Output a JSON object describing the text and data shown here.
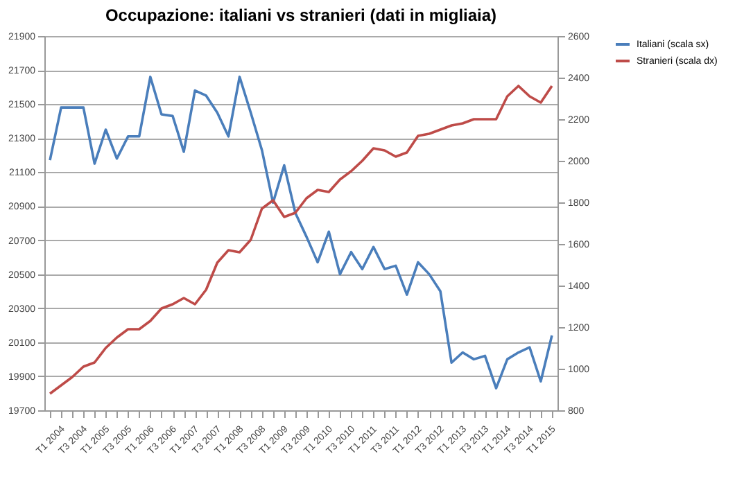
{
  "chart_data": {
    "type": "line",
    "title": "Occupazione: italiani vs stranieri (dati in migliaia)",
    "categories": [
      "T1 2004",
      null,
      "T3 2004",
      null,
      "T1 2005",
      null,
      "T3 2005",
      null,
      "T1 2006",
      null,
      "T3 2006",
      null,
      "T1 2007",
      null,
      "T3 2007",
      null,
      "T1 2008",
      null,
      "T3 2008",
      null,
      "T1 2009",
      null,
      "T3 2009",
      null,
      "T1 2010",
      null,
      "T3 2010",
      null,
      "T1 2011",
      null,
      "T3 2011",
      null,
      "T1 2012",
      null,
      "T3 2012",
      null,
      "T1 2013",
      null,
      "T3 2013",
      null,
      "T1 2014",
      null,
      "T3 2014",
      null,
      "T1 2015",
      null
    ],
    "series": [
      {
        "name": "Italiani (scala sx)",
        "color": "#4a7ebb",
        "values": [
          21170,
          21480,
          21480,
          21480,
          21150,
          21350,
          21180,
          21310,
          21310,
          21660,
          21440,
          21430,
          21220,
          21580,
          21550,
          21450,
          21310,
          21660,
          21450,
          21230,
          20920,
          21140,
          20860,
          20720,
          20570,
          20750,
          20500,
          20630,
          20530,
          20660,
          20530,
          20550,
          20380,
          20570,
          20500,
          20400,
          19980,
          20040,
          20000,
          20020,
          19830,
          20000,
          20040,
          20070,
          19870,
          20140
        ]
      },
      {
        "name": "Stranieri (scala dx)",
        "color": "#be4b48",
        "axis": "y2",
        "values": [
          880,
          920,
          960,
          1010,
          1030,
          1100,
          1150,
          1190,
          1190,
          1230,
          1290,
          1310,
          1340,
          1310,
          1380,
          1510,
          1570,
          1560,
          1620,
          1770,
          1810,
          1730,
          1750,
          1820,
          1860,
          1850,
          1910,
          1950,
          2000,
          2060,
          2050,
          2020,
          2040,
          2120,
          2130,
          2150,
          2170,
          2180,
          2200,
          2200,
          2200,
          2310,
          2360,
          2310,
          2280,
          2360
        ]
      }
    ],
    "ylim": [
      19700,
      21900
    ],
    "yticks": [
      19700,
      19900,
      20100,
      20300,
      20500,
      20700,
      20900,
      21100,
      21300,
      21500,
      21700,
      21900
    ],
    "y2lim": [
      800,
      2600
    ],
    "y2ticks": [
      800,
      1000,
      1200,
      1400,
      1600,
      1800,
      2000,
      2200,
      2400,
      2600
    ],
    "grid": "y",
    "legend": "right",
    "marker": "none",
    "line_style": "solid"
  }
}
